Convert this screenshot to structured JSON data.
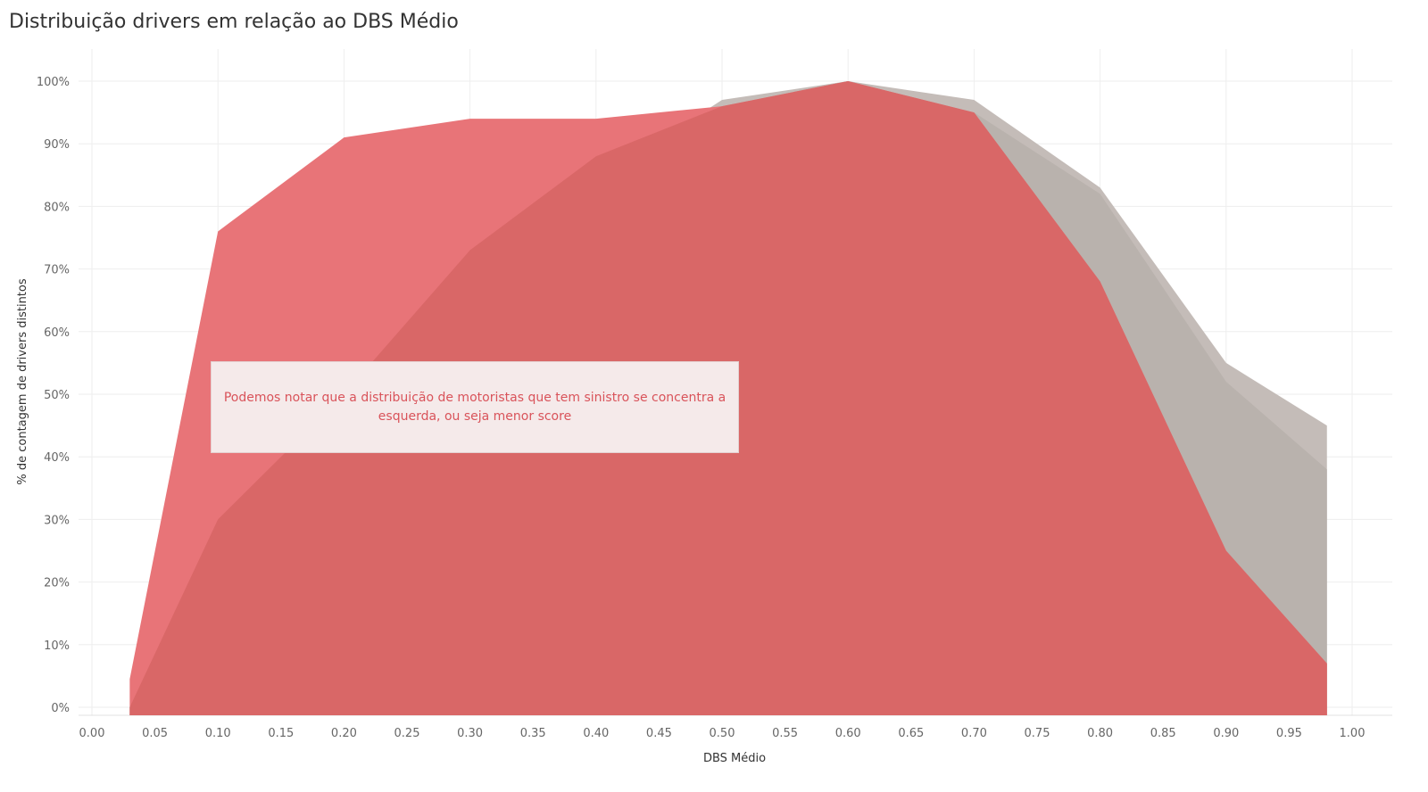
{
  "title": "Distribuição drivers em relação ao DBS Médio",
  "annotation": "Podemos notar que a distribuição de motoristas que tem sinistro se concentra a esquerda, ou seja menor score",
  "colors": {
    "grey_outer": "#c4bcb8",
    "grey_inner": "#b9b2ad",
    "red_light": "#e87478",
    "red_dark": "#d96767",
    "grid": "#eeeeee",
    "annotation_bg": "#f5eaea",
    "annotation_text": "#d9535a"
  },
  "chart_data": {
    "type": "area",
    "title": "Distribuição drivers em relação ao DBS Médio",
    "xlabel": "DBS Médio",
    "ylabel": "% de contagem de drivers distintos",
    "xlim": [
      0.0,
      1.0
    ],
    "ylim": [
      0,
      100
    ],
    "grid": true,
    "x_ticks": [
      "0.00",
      "0.05",
      "0.10",
      "0.15",
      "0.20",
      "0.25",
      "0.30",
      "0.35",
      "0.40",
      "0.45",
      "0.50",
      "0.55",
      "0.60",
      "0.65",
      "0.70",
      "0.75",
      "0.80",
      "0.85",
      "0.90",
      "0.95",
      "1.00"
    ],
    "y_ticks": [
      "0%",
      "10%",
      "20%",
      "30%",
      "40%",
      "50%",
      "60%",
      "70%",
      "80%",
      "90%",
      "100%"
    ],
    "series": [
      {
        "x": [
          0.03,
          0.1,
          0.2,
          0.3,
          0.4,
          0.5,
          0.6,
          0.7,
          0.8,
          0.9,
          0.98
        ],
        "y": [
          0,
          19,
          41,
          66,
          84,
          97,
          100,
          97,
          83,
          55,
          45
        ]
      },
      {
        "x": [
          0.03,
          0.1,
          0.2,
          0.3,
          0.4,
          0.5,
          0.6,
          0.7,
          0.8,
          0.9,
          0.98
        ],
        "y": [
          0,
          30,
          50,
          73,
          88,
          96,
          100,
          95,
          82,
          52,
          38
        ]
      },
      {
        "x": [
          0.03,
          0.1,
          0.2,
          0.3,
          0.4,
          0.5,
          0.6,
          0.7,
          0.8,
          0.9,
          0.98
        ],
        "y": [
          4.5,
          76,
          91,
          94,
          94,
          96,
          100,
          95,
          68,
          25,
          7
        ]
      }
    ]
  }
}
